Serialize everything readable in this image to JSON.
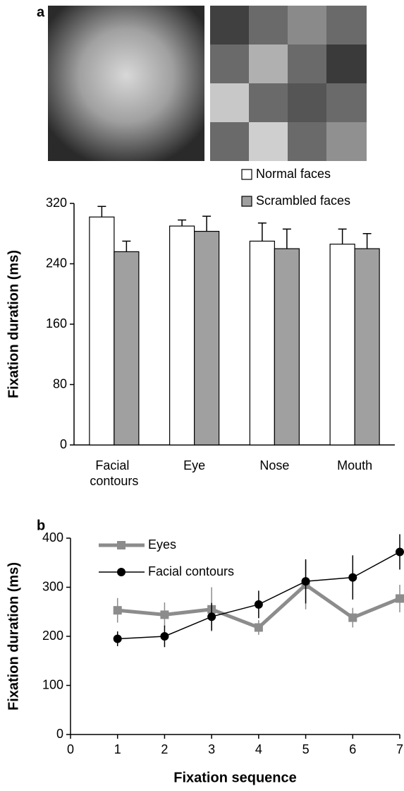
{
  "chart_data": [
    {
      "type": "bar",
      "panel": "a",
      "categories": [
        "Facial contours",
        "Eye",
        "Nose",
        "Mouth"
      ],
      "series": [
        {
          "name": "Normal faces",
          "color": "#ffffff",
          "values": [
            302,
            290,
            270,
            266
          ],
          "errors": [
            14,
            8,
            24,
            20
          ]
        },
        {
          "name": "Scrambled faces",
          "color": "#a0a0a0",
          "values": [
            256,
            283,
            260,
            260
          ],
          "errors": [
            14,
            20,
            26,
            20
          ]
        }
      ],
      "ylabel": "Fixation duration (ms)",
      "ylim": [
        0,
        320
      ],
      "yticks": [
        0,
        80,
        160,
        240,
        320
      ]
    },
    {
      "type": "line",
      "panel": "b",
      "x": [
        1,
        2,
        3,
        4,
        5,
        6,
        7
      ],
      "series": [
        {
          "name": "Eyes",
          "color": "#8c8c8c",
          "marker": "square",
          "values": [
            253,
            244,
            255,
            218,
            305,
            238,
            277
          ],
          "errors": [
            25,
            25,
            45,
            15,
            50,
            20,
            28
          ]
        },
        {
          "name": "Facial contours",
          "color": "#000000",
          "marker": "circle",
          "values": [
            195,
            200,
            240,
            265,
            312,
            320,
            372
          ],
          "errors": [
            15,
            22,
            28,
            28,
            45,
            45,
            36
          ]
        }
      ],
      "xlabel": "Fixation sequence",
      "ylabel": "Fixation duration (ms)",
      "xlim": [
        0,
        7
      ],
      "xticks": [
        0,
        1,
        2,
        3,
        4,
        5,
        6,
        7
      ],
      "ylim": [
        0,
        400
      ],
      "yticks": [
        0,
        100,
        200,
        300,
        400
      ]
    }
  ]
}
